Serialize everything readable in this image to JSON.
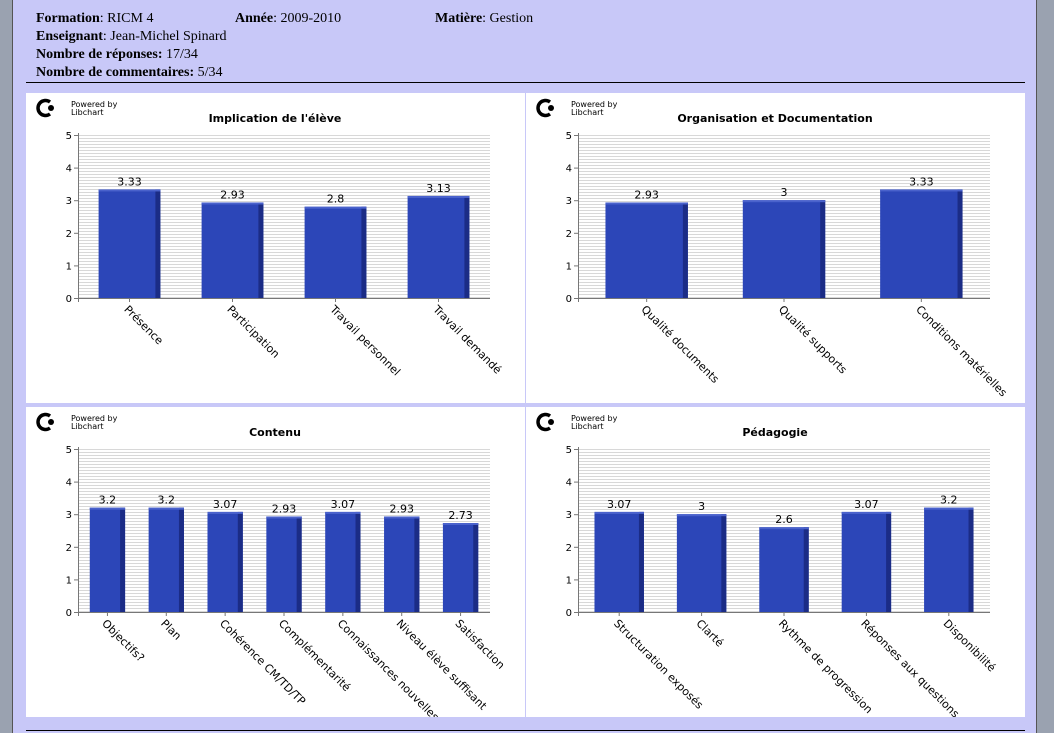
{
  "header": {
    "formation_label": "Formation",
    "formation_value": ": RICM 4",
    "annee_label": "Année",
    "annee_value": ": 2009-2010",
    "matiere_label": "Matière",
    "matiere_value": ": Gestion",
    "enseignant_label": "Enseignant",
    "enseignant_value": ": Jean-Michel Spinard",
    "reponses_label": "Nombre de réponses:",
    "reponses_value": " 17/34",
    "commentaires_label": "Nombre de commentaires:",
    "commentaires_value": " 5/34"
  },
  "logo": {
    "line1": "Powered by",
    "line2": "Libchart"
  },
  "colors": {
    "bar": "#2c46b8",
    "bar_side": "#1b2c86",
    "bar_top": "#4a62cc",
    "grid": "#d8d8d8"
  },
  "chart_data": [
    {
      "type": "bar",
      "title": "Implication de l'élève",
      "categories": [
        "Présence",
        "Participation",
        "Travail personnel",
        "Travail demandé"
      ],
      "values": [
        3.33,
        2.93,
        2.8,
        3.13
      ],
      "labels": [
        "3.33",
        "2.93",
        "2.8",
        "3.13"
      ],
      "ylim": [
        0,
        5
      ],
      "yticks": [
        "0",
        "1",
        "2",
        "3",
        "4",
        "5"
      ],
      "xlabel": "",
      "ylabel": ""
    },
    {
      "type": "bar",
      "title": "Organisation et Documentation",
      "categories": [
        "Qualité documents",
        "Qualité supports",
        "Conditions matérielles"
      ],
      "values": [
        2.93,
        3,
        3.33
      ],
      "labels": [
        "2.93",
        "3",
        "3.33"
      ],
      "ylim": [
        0,
        5
      ],
      "yticks": [
        "0",
        "1",
        "2",
        "3",
        "4",
        "5"
      ],
      "xlabel": "",
      "ylabel": ""
    },
    {
      "type": "bar",
      "title": "Contenu",
      "categories": [
        "Objectifs?",
        "Plan",
        "Cohérence CM/TD/TP",
        "Complémentarité",
        "Connaissances nouvelles",
        "Niveau élève suffisant",
        "Satisfaction"
      ],
      "values": [
        3.2,
        3.2,
        3.07,
        2.93,
        3.07,
        2.93,
        2.73
      ],
      "labels": [
        "3.2",
        "3.2",
        "3.07",
        "2.93",
        "3.07",
        "2.93",
        "2.73"
      ],
      "ylim": [
        0,
        5
      ],
      "yticks": [
        "0",
        "1",
        "2",
        "3",
        "4",
        "5"
      ],
      "xlabel": "",
      "ylabel": ""
    },
    {
      "type": "bar",
      "title": "Pédagogie",
      "categories": [
        "Structuration exposés",
        "Clarté",
        "Rythme de progression",
        "Réponses aux questions",
        "Disponibilité"
      ],
      "values": [
        3.07,
        3,
        2.6,
        3.07,
        3.2
      ],
      "labels": [
        "3.07",
        "3",
        "2.6",
        "3.07",
        "3.2"
      ],
      "ylim": [
        0,
        5
      ],
      "yticks": [
        "0",
        "1",
        "2",
        "3",
        "4",
        "5"
      ],
      "xlabel": "",
      "ylabel": ""
    }
  ]
}
